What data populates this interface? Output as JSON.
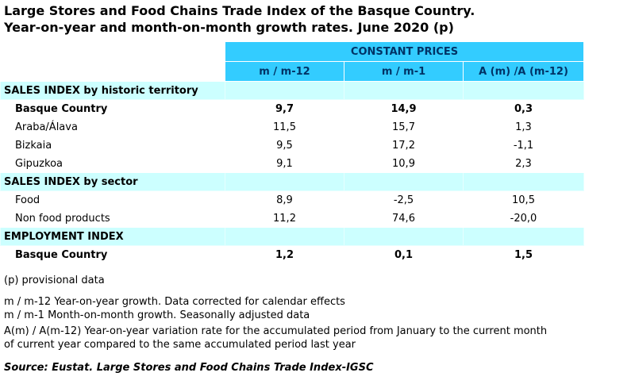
{
  "title": "Large Stores and Food Chains Trade Index of the Basque Country. Year-on-year and month-on-month growth rates. June 2020 (p)",
  "table": {
    "header_group": "CONSTANT PRICES",
    "columns": [
      "m / m-12",
      "m / m-1",
      "A (m) /A (m-12)"
    ],
    "rows": [
      {
        "label": "SALES INDEX by historic territory",
        "section": true
      },
      {
        "label": "Basque Country",
        "values": [
          "9,7",
          "14,9",
          "0,3"
        ],
        "bold": true
      },
      {
        "label": "Araba/Álava",
        "values": [
          "11,5",
          "15,7",
          "1,3"
        ]
      },
      {
        "label": "Bizkaia",
        "values": [
          "9,5",
          "17,2",
          "-1,1"
        ]
      },
      {
        "label": "Gipuzkoa",
        "values": [
          "9,1",
          "10,9",
          "2,3"
        ]
      },
      {
        "label": "SALES INDEX by sector",
        "section": true
      },
      {
        "label": "Food",
        "values": [
          "8,9",
          "-2,5",
          "10,5"
        ]
      },
      {
        "label": "Non food products",
        "values": [
          "11,2",
          "74,6",
          "-20,0"
        ]
      },
      {
        "label": "EMPLOYMENT INDEX",
        "section": true
      },
      {
        "label": "Basque Country",
        "values": [
          "1,2",
          "0,1",
          "1,5"
        ],
        "bold": true
      }
    ]
  },
  "provisional_note": "(p) provisional data",
  "notes": [
    "m / m-12 Year-on-year growth. Data corrected for calendar effects",
    "m / m-1 Month-on-month growth. Seasonally adjusted data",
    "A(m) / A(m-12) Year-on-year variation rate for the accumulated period from January to the current month of current year compared to the same accumulated period last year"
  ],
  "source": "Source: Eustat. Large Stores and Food Chains Trade Index-IGSC"
}
